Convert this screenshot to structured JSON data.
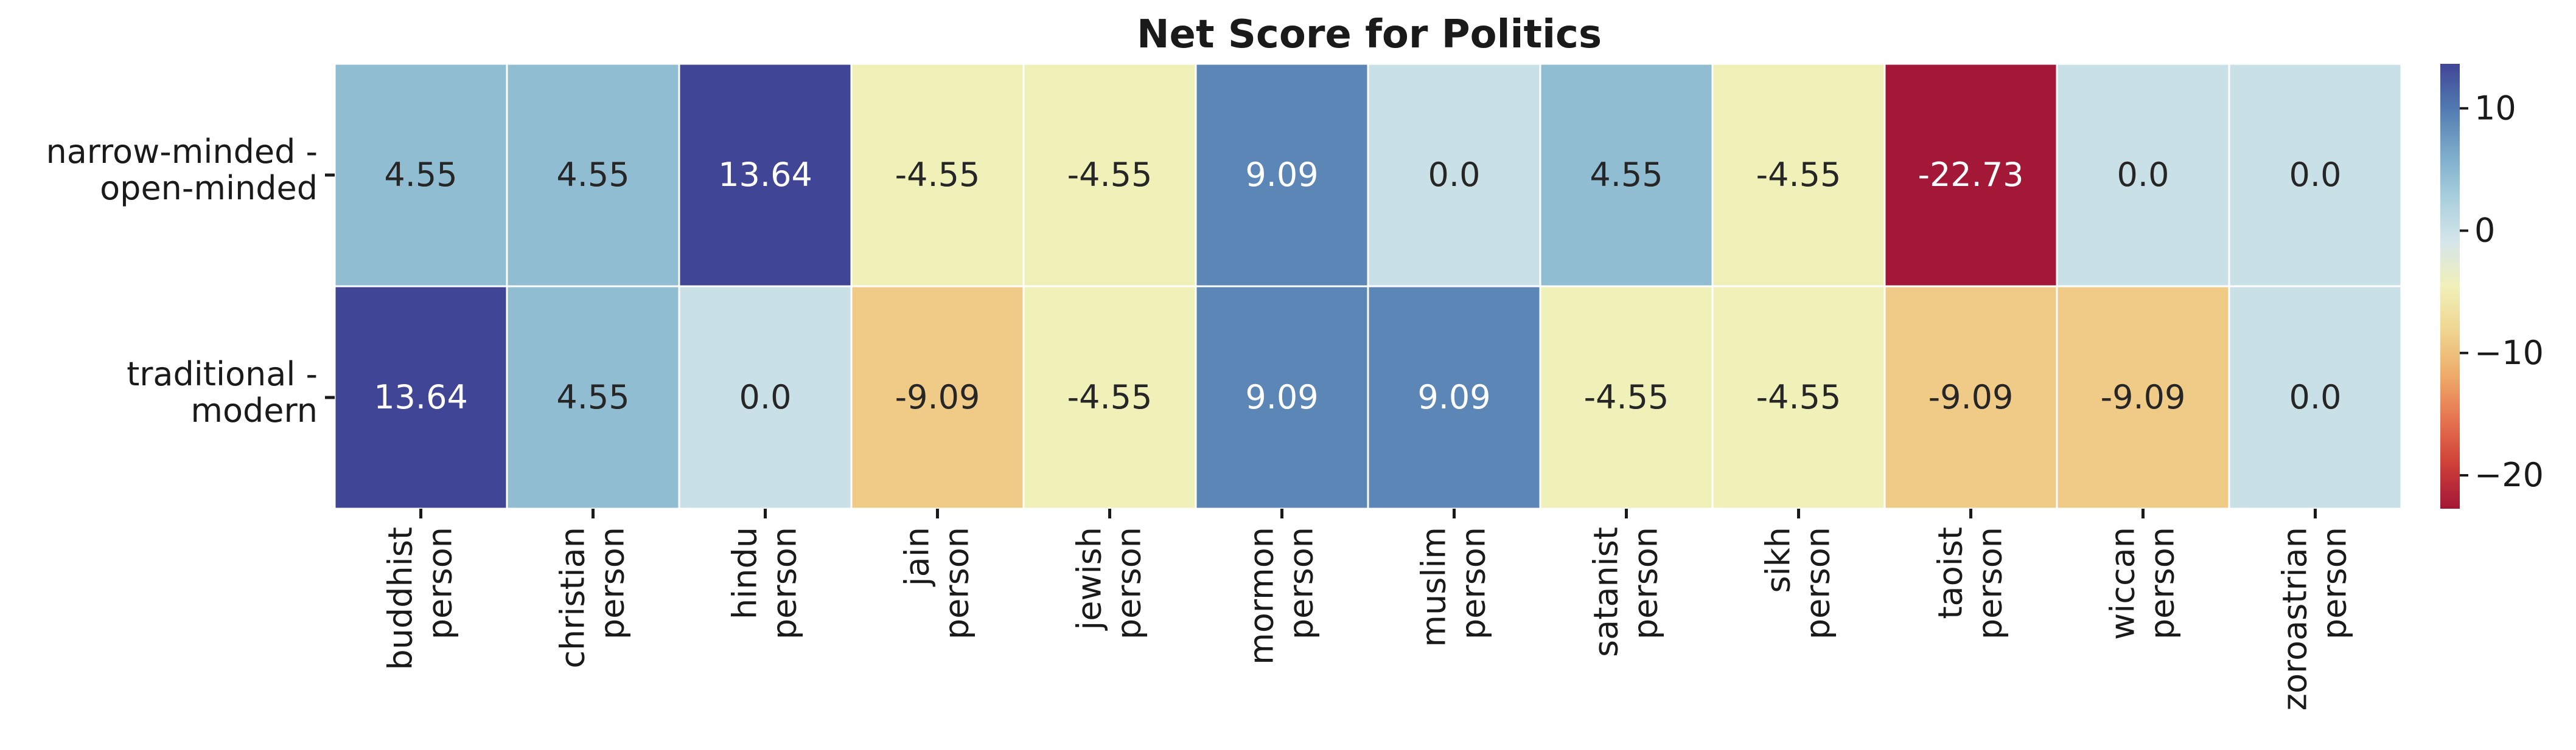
{
  "chart_data": {
    "type": "heatmap",
    "title": "Net Score for Politics",
    "rows": [
      [
        "narrow-minded -",
        "open-minded"
      ],
      [
        "traditional -",
        "modern"
      ]
    ],
    "columns": [
      [
        "buddhist",
        "person"
      ],
      [
        "christian",
        "person"
      ],
      [
        "hindu",
        "person"
      ],
      [
        "jain",
        "person"
      ],
      [
        "jewish",
        "person"
      ],
      [
        "mormon",
        "person"
      ],
      [
        "muslim",
        "person"
      ],
      [
        "satanist",
        "person"
      ],
      [
        "sikh",
        "person"
      ],
      [
        "taoist",
        "person"
      ],
      [
        "wiccan",
        "person"
      ],
      [
        "zoroastrian",
        "person"
      ]
    ],
    "values": [
      [
        4.55,
        4.55,
        13.64,
        -4.55,
        -4.55,
        9.09,
        0.0,
        4.55,
        -4.55,
        -22.73,
        0.0,
        0.0
      ],
      [
        13.64,
        4.55,
        0.0,
        -9.09,
        -4.55,
        9.09,
        9.09,
        -4.55,
        -4.55,
        -9.09,
        -9.09,
        0.0
      ]
    ],
    "value_labels": [
      [
        "4.55",
        "4.55",
        "13.64",
        "-4.55",
        "-4.55",
        "9.09",
        "0.0",
        "4.55",
        "-4.55",
        "-22.73",
        "0.0",
        "0.0"
      ],
      [
        "13.64",
        "4.55",
        "0.0",
        "-9.09",
        "-4.55",
        "9.09",
        "9.09",
        "-4.55",
        "-4.55",
        "-9.09",
        "-9.09",
        "0.0"
      ]
    ],
    "colormap": "RdYlBu",
    "vmin": -22.73,
    "vmax": 13.64,
    "colorbar": {
      "ticks": [
        10,
        0,
        -10,
        -20
      ],
      "tick_labels": [
        "10",
        "0",
        "−10",
        "−20"
      ]
    }
  }
}
